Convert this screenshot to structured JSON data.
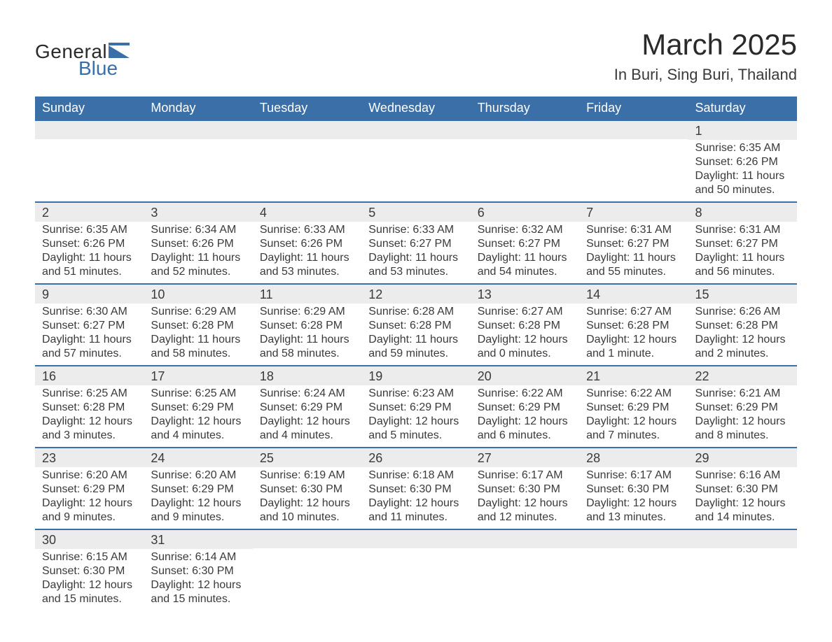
{
  "brand": {
    "name_main": "General",
    "name_sub": "Blue"
  },
  "title": "March 2025",
  "location": "In Buri, Sing Buri, Thailand",
  "colors": {
    "header_bg": "#3a6fa8",
    "header_text": "#ffffff",
    "daynum_bg": "#ececec",
    "row_divider": "#3a6fa8",
    "text": "#3a3a3a",
    "page_bg": "#ffffff"
  },
  "typography": {
    "title_fontsize": 42,
    "location_fontsize": 22,
    "header_fontsize": 18,
    "daynum_fontsize": 18,
    "body_fontsize": 16
  },
  "weekdays": [
    "Sunday",
    "Monday",
    "Tuesday",
    "Wednesday",
    "Thursday",
    "Friday",
    "Saturday"
  ],
  "labels": {
    "sunrise": "Sunrise:",
    "sunset": "Sunset:",
    "daylight": "Daylight:"
  },
  "weeks": [
    [
      null,
      null,
      null,
      null,
      null,
      null,
      {
        "d": "1",
        "sunrise": "6:35 AM",
        "sunset": "6:26 PM",
        "daylight": "11 hours and 50 minutes."
      }
    ],
    [
      {
        "d": "2",
        "sunrise": "6:35 AM",
        "sunset": "6:26 PM",
        "daylight": "11 hours and 51 minutes."
      },
      {
        "d": "3",
        "sunrise": "6:34 AM",
        "sunset": "6:26 PM",
        "daylight": "11 hours and 52 minutes."
      },
      {
        "d": "4",
        "sunrise": "6:33 AM",
        "sunset": "6:26 PM",
        "daylight": "11 hours and 53 minutes."
      },
      {
        "d": "5",
        "sunrise": "6:33 AM",
        "sunset": "6:27 PM",
        "daylight": "11 hours and 53 minutes."
      },
      {
        "d": "6",
        "sunrise": "6:32 AM",
        "sunset": "6:27 PM",
        "daylight": "11 hours and 54 minutes."
      },
      {
        "d": "7",
        "sunrise": "6:31 AM",
        "sunset": "6:27 PM",
        "daylight": "11 hours and 55 minutes."
      },
      {
        "d": "8",
        "sunrise": "6:31 AM",
        "sunset": "6:27 PM",
        "daylight": "11 hours and 56 minutes."
      }
    ],
    [
      {
        "d": "9",
        "sunrise": "6:30 AM",
        "sunset": "6:27 PM",
        "daylight": "11 hours and 57 minutes."
      },
      {
        "d": "10",
        "sunrise": "6:29 AM",
        "sunset": "6:28 PM",
        "daylight": "11 hours and 58 minutes."
      },
      {
        "d": "11",
        "sunrise": "6:29 AM",
        "sunset": "6:28 PM",
        "daylight": "11 hours and 58 minutes."
      },
      {
        "d": "12",
        "sunrise": "6:28 AM",
        "sunset": "6:28 PM",
        "daylight": "11 hours and 59 minutes."
      },
      {
        "d": "13",
        "sunrise": "6:27 AM",
        "sunset": "6:28 PM",
        "daylight": "12 hours and 0 minutes."
      },
      {
        "d": "14",
        "sunrise": "6:27 AM",
        "sunset": "6:28 PM",
        "daylight": "12 hours and 1 minute."
      },
      {
        "d": "15",
        "sunrise": "6:26 AM",
        "sunset": "6:28 PM",
        "daylight": "12 hours and 2 minutes."
      }
    ],
    [
      {
        "d": "16",
        "sunrise": "6:25 AM",
        "sunset": "6:28 PM",
        "daylight": "12 hours and 3 minutes."
      },
      {
        "d": "17",
        "sunrise": "6:25 AM",
        "sunset": "6:29 PM",
        "daylight": "12 hours and 4 minutes."
      },
      {
        "d": "18",
        "sunrise": "6:24 AM",
        "sunset": "6:29 PM",
        "daylight": "12 hours and 4 minutes."
      },
      {
        "d": "19",
        "sunrise": "6:23 AM",
        "sunset": "6:29 PM",
        "daylight": "12 hours and 5 minutes."
      },
      {
        "d": "20",
        "sunrise": "6:22 AM",
        "sunset": "6:29 PM",
        "daylight": "12 hours and 6 minutes."
      },
      {
        "d": "21",
        "sunrise": "6:22 AM",
        "sunset": "6:29 PM",
        "daylight": "12 hours and 7 minutes."
      },
      {
        "d": "22",
        "sunrise": "6:21 AM",
        "sunset": "6:29 PM",
        "daylight": "12 hours and 8 minutes."
      }
    ],
    [
      {
        "d": "23",
        "sunrise": "6:20 AM",
        "sunset": "6:29 PM",
        "daylight": "12 hours and 9 minutes."
      },
      {
        "d": "24",
        "sunrise": "6:20 AM",
        "sunset": "6:29 PM",
        "daylight": "12 hours and 9 minutes."
      },
      {
        "d": "25",
        "sunrise": "6:19 AM",
        "sunset": "6:30 PM",
        "daylight": "12 hours and 10 minutes."
      },
      {
        "d": "26",
        "sunrise": "6:18 AM",
        "sunset": "6:30 PM",
        "daylight": "12 hours and 11 minutes."
      },
      {
        "d": "27",
        "sunrise": "6:17 AM",
        "sunset": "6:30 PM",
        "daylight": "12 hours and 12 minutes."
      },
      {
        "d": "28",
        "sunrise": "6:17 AM",
        "sunset": "6:30 PM",
        "daylight": "12 hours and 13 minutes."
      },
      {
        "d": "29",
        "sunrise": "6:16 AM",
        "sunset": "6:30 PM",
        "daylight": "12 hours and 14 minutes."
      }
    ],
    [
      {
        "d": "30",
        "sunrise": "6:15 AM",
        "sunset": "6:30 PM",
        "daylight": "12 hours and 15 minutes."
      },
      {
        "d": "31",
        "sunrise": "6:14 AM",
        "sunset": "6:30 PM",
        "daylight": "12 hours and 15 minutes."
      },
      null,
      null,
      null,
      null,
      null
    ]
  ]
}
